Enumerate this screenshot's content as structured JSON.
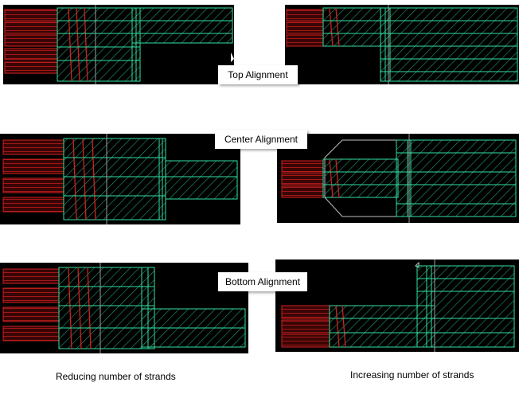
{
  "labels": {
    "top_alignment": "Top Alignment",
    "center_alignment": "Center Alignment",
    "bottom_alignment": "Bottom Alignment"
  },
  "captions": {
    "reducing": "Reducing number of strands",
    "increasing": "Increasing number of strands"
  },
  "colors": {
    "background": "#000000",
    "strand_red": "#d42020",
    "strand_green": "#34e0a0",
    "cursor_line": "#a0a0a0",
    "grid_dot": "#606060",
    "outline": "#c0c0c0"
  }
}
